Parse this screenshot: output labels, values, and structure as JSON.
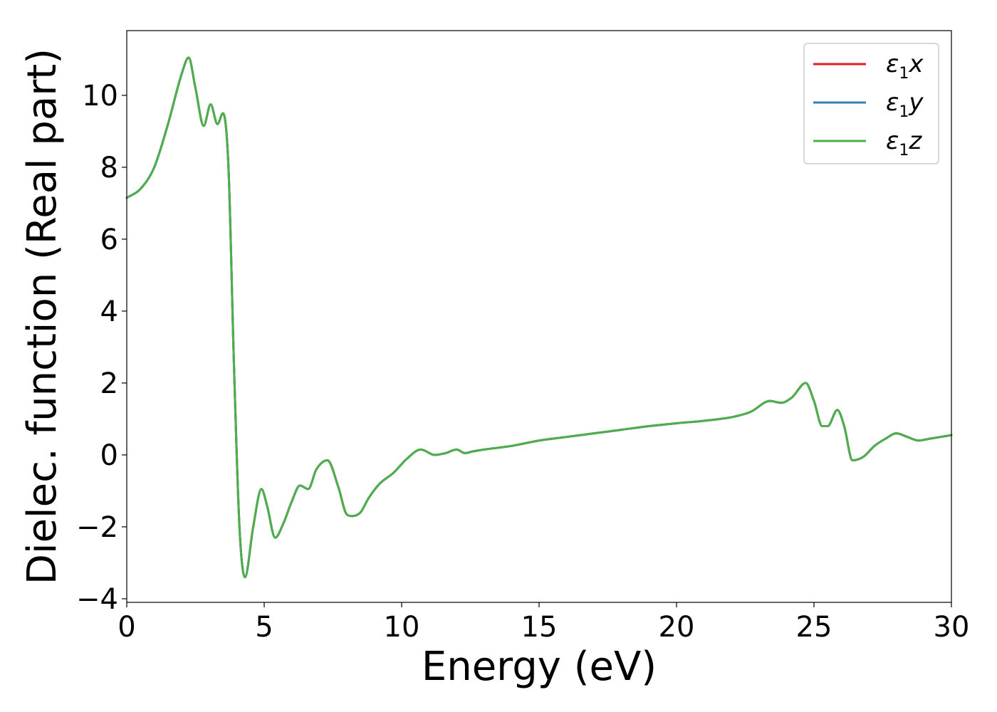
{
  "chart_data": {
    "type": "line",
    "title": "",
    "xlabel": "Energy (eV)",
    "ylabel": "Dielec. function (Real part)",
    "xlim": [
      0,
      30
    ],
    "ylim": [
      -4.1,
      11.8
    ],
    "xticks": [
      0,
      5,
      10,
      15,
      20,
      25,
      30
    ],
    "xtick_labels": [
      "0",
      "5",
      "10",
      "15",
      "20",
      "25",
      "30"
    ],
    "yticks": [
      -4,
      -2,
      0,
      2,
      4,
      6,
      8,
      10
    ],
    "ytick_labels": [
      "−4",
      "−2",
      "0",
      "2",
      "4",
      "6",
      "8",
      "10"
    ],
    "grid": false,
    "legend_position": "top-right",
    "x": [
      0,
      0.5,
      1.0,
      1.5,
      2.0,
      2.25,
      2.5,
      2.8,
      3.05,
      3.3,
      3.5,
      3.7,
      3.9,
      4.1,
      4.3,
      4.6,
      4.9,
      5.1,
      5.4,
      5.7,
      6.0,
      6.3,
      6.6,
      6.9,
      7.3,
      7.7,
      8.0,
      8.2,
      8.5,
      8.8,
      9.2,
      9.7,
      10.2,
      10.7,
      11.2,
      11.6,
      12.0,
      12.3,
      12.6,
      13.0,
      14.0,
      15.0,
      16.0,
      17.0,
      18.0,
      19.0,
      20.0,
      21.0,
      22.0,
      22.7,
      23.4,
      23.8,
      24.2,
      24.7,
      25.0,
      25.3,
      25.5,
      25.85,
      26.1,
      26.4,
      26.8,
      27.2,
      27.6,
      28.0,
      28.4,
      28.8,
      29.2,
      29.6,
      30.0
    ],
    "series": [
      {
        "name": "ε₁x",
        "color": "#e41a1c",
        "values": [
          7.15,
          7.4,
          8.0,
          9.2,
          10.6,
          11.05,
          10.2,
          9.15,
          9.75,
          9.2,
          9.5,
          8.0,
          2.5,
          -2.0,
          -3.4,
          -2.0,
          -0.95,
          -1.4,
          -2.3,
          -1.9,
          -1.3,
          -0.85,
          -0.95,
          -0.4,
          -0.15,
          -0.9,
          -1.65,
          -1.7,
          -1.6,
          -1.2,
          -0.8,
          -0.5,
          -0.1,
          0.15,
          0.0,
          0.05,
          0.15,
          0.05,
          0.1,
          0.15,
          0.25,
          0.4,
          0.5,
          0.6,
          0.7,
          0.8,
          0.88,
          0.95,
          1.05,
          1.2,
          1.5,
          1.45,
          1.6,
          2.0,
          1.5,
          0.8,
          0.8,
          1.25,
          0.8,
          -0.15,
          -0.05,
          0.25,
          0.45,
          0.6,
          0.5,
          0.4,
          0.45,
          0.5,
          0.55
        ]
      },
      {
        "name": "ε₁y",
        "color": "#377eb8",
        "values": [
          7.15,
          7.4,
          8.0,
          9.2,
          10.6,
          11.05,
          10.2,
          9.15,
          9.75,
          9.2,
          9.5,
          8.0,
          2.5,
          -2.0,
          -3.4,
          -2.0,
          -0.95,
          -1.4,
          -2.3,
          -1.9,
          -1.3,
          -0.85,
          -0.95,
          -0.4,
          -0.15,
          -0.9,
          -1.65,
          -1.7,
          -1.6,
          -1.2,
          -0.8,
          -0.5,
          -0.1,
          0.15,
          0.0,
          0.05,
          0.15,
          0.05,
          0.1,
          0.15,
          0.25,
          0.4,
          0.5,
          0.6,
          0.7,
          0.8,
          0.88,
          0.95,
          1.05,
          1.2,
          1.5,
          1.45,
          1.6,
          2.0,
          1.5,
          0.8,
          0.8,
          1.25,
          0.8,
          -0.15,
          -0.05,
          0.25,
          0.45,
          0.6,
          0.5,
          0.4,
          0.45,
          0.5,
          0.55
        ]
      },
      {
        "name": "ε₁z",
        "color": "#4daf4a",
        "values": [
          7.15,
          7.4,
          8.0,
          9.2,
          10.6,
          11.05,
          10.2,
          9.15,
          9.75,
          9.2,
          9.5,
          8.0,
          2.5,
          -2.0,
          -3.4,
          -2.0,
          -0.95,
          -1.4,
          -2.3,
          -1.9,
          -1.3,
          -0.85,
          -0.95,
          -0.4,
          -0.15,
          -0.9,
          -1.65,
          -1.7,
          -1.6,
          -1.2,
          -0.8,
          -0.5,
          -0.1,
          0.15,
          0.0,
          0.05,
          0.15,
          0.05,
          0.1,
          0.15,
          0.25,
          0.4,
          0.5,
          0.6,
          0.7,
          0.8,
          0.88,
          0.95,
          1.05,
          1.2,
          1.5,
          1.45,
          1.6,
          2.0,
          1.5,
          0.8,
          0.8,
          1.25,
          0.8,
          -0.15,
          -0.05,
          0.25,
          0.45,
          0.6,
          0.5,
          0.4,
          0.45,
          0.5,
          0.55
        ]
      }
    ]
  },
  "legend": {
    "items": [
      {
        "symbol": "ε",
        "sub": "1",
        "axis": "x",
        "color": "#e41a1c"
      },
      {
        "symbol": "ε",
        "sub": "1",
        "axis": "y",
        "color": "#377eb8"
      },
      {
        "symbol": "ε",
        "sub": "1",
        "axis": "z",
        "color": "#4daf4a"
      }
    ]
  }
}
